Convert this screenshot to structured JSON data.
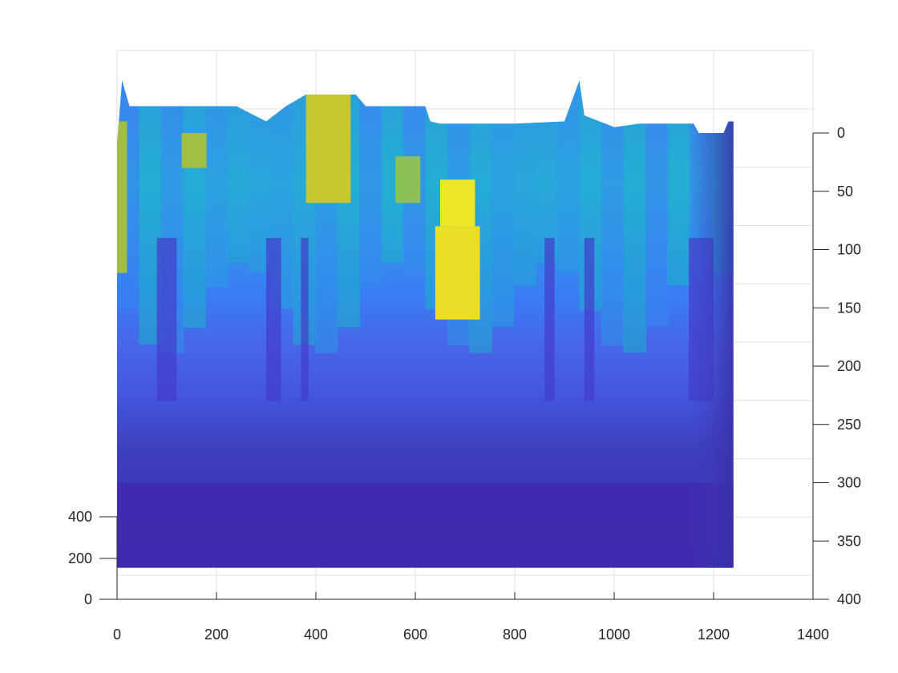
{
  "chart_data": {
    "type": "heatmap",
    "title": "",
    "xlabel": "",
    "ylabel": "",
    "zlabel": "",
    "view": "3d-surface-side",
    "colormap": "parula",
    "grid": true,
    "x": {
      "lim": [
        0,
        1400
      ],
      "ticks": [
        0,
        200,
        400,
        600,
        800,
        1000,
        1200,
        1400
      ],
      "tick_labels": [
        "0",
        "200",
        "400",
        "600",
        "800",
        "1000",
        "1200",
        "1400"
      ]
    },
    "y": {
      "lim": [
        0,
        400
      ],
      "ticks": [
        0,
        200,
        400
      ],
      "tick_labels": [
        "0",
        "200",
        "400"
      ]
    },
    "z": {
      "lim": [
        0,
        400
      ],
      "reversed": true,
      "ticks": [
        0,
        50,
        100,
        150,
        200,
        250,
        300,
        350,
        400
      ],
      "tick_labels": [
        "0",
        "50",
        "100",
        "150",
        "200",
        "250",
        "300",
        "350",
        "400"
      ]
    },
    "surface": {
      "x_range": [
        0,
        1240
      ],
      "y_range": [
        0,
        250
      ],
      "z_bottom": 373,
      "top_profile_z": [
        [
          0,
          10
        ],
        [
          10,
          -45
        ],
        [
          25,
          -23
        ],
        [
          60,
          -23
        ],
        [
          120,
          -23
        ],
        [
          160,
          -23
        ],
        [
          240,
          -23
        ],
        [
          300,
          -10
        ],
        [
          340,
          -23
        ],
        [
          380,
          -33
        ],
        [
          420,
          -33
        ],
        [
          480,
          -33
        ],
        [
          500,
          -23
        ],
        [
          620,
          -23
        ],
        [
          630,
          -10
        ],
        [
          650,
          -8
        ],
        [
          720,
          -8
        ],
        [
          780,
          -8
        ],
        [
          800,
          -8
        ],
        [
          900,
          -10
        ],
        [
          930,
          -45
        ],
        [
          940,
          -15
        ],
        [
          1000,
          -5
        ],
        [
          1050,
          -8
        ],
        [
          1160,
          -8
        ],
        [
          1170,
          0
        ],
        [
          1220,
          0
        ],
        [
          1230,
          -10
        ],
        [
          1240,
          -10
        ]
      ],
      "bands": [
        {
          "z": [
            0,
            190
          ],
          "value": 0.55
        },
        {
          "z": [
            190,
            270
          ],
          "value": 0.35
        },
        {
          "z": [
            270,
            373
          ],
          "value": 0.1
        }
      ],
      "hot_regions": [
        {
          "x": [
            380,
            470
          ],
          "z": [
            -33,
            60
          ],
          "value": 0.85
        },
        {
          "x": [
            640,
            730
          ],
          "z": [
            80,
            160
          ],
          "value": 0.92
        },
        {
          "x": [
            650,
            720
          ],
          "z": [
            40,
            80
          ],
          "value": 0.95
        },
        {
          "x": [
            0,
            20
          ],
          "z": [
            -10,
            120
          ],
          "value": 0.8
        },
        {
          "x": [
            130,
            180
          ],
          "z": [
            0,
            30
          ],
          "value": 0.8
        },
        {
          "x": [
            560,
            610
          ],
          "z": [
            20,
            60
          ],
          "value": 0.78
        }
      ]
    }
  }
}
